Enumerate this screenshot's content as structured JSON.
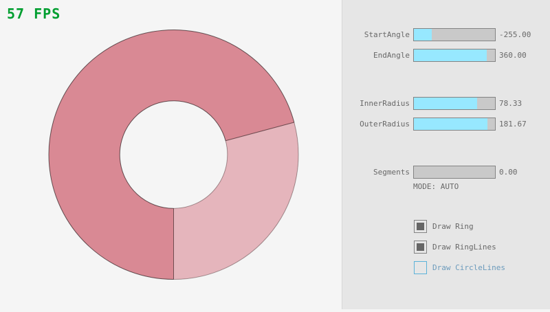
{
  "window": {
    "fps_label": "57 FPS"
  },
  "colors": {
    "canvas_bg": "#f5f5f5",
    "panel_bg": "#e6e6e6",
    "fps_green": "#009e30",
    "text_gray": "#686868",
    "slider_border": "#838383",
    "slider_track": "#c9c9c9",
    "slider_fill": "#97e8ff",
    "checkbox_check": "#666666",
    "focus_border": "#5bb2d9",
    "focus_text": "#6c9bbc",
    "ring_dark": "#d98994",
    "ring_light": "#e5b5bc"
  },
  "ring": {
    "start_angle": -255.0,
    "end_angle": 360.0,
    "inner_radius": 78.33,
    "outer_radius": 181.67,
    "segments": 0,
    "dark_color": "#d98994",
    "light_color": "#e5b5bc"
  },
  "panel": {
    "sliders": [
      {
        "label": "StartAngle",
        "value": "-255.00",
        "fill_pct": 21.7
      },
      {
        "label": "EndAngle",
        "value": "360.00",
        "fill_pct": 90.0
      },
      {
        "label": "InnerRadius",
        "value": "78.33",
        "fill_pct": 78.3
      },
      {
        "label": "OuterRadius",
        "value": "181.67",
        "fill_pct": 90.8
      },
      {
        "label": "Segments",
        "value": "0.00",
        "fill_pct": 0
      }
    ],
    "mode_label": "MODE: AUTO",
    "checkboxes": [
      {
        "label": "Draw Ring",
        "checked": true,
        "focused": false
      },
      {
        "label": "Draw RingLines",
        "checked": true,
        "focused": false
      },
      {
        "label": "Draw CircleLines",
        "checked": false,
        "focused": true
      }
    ]
  }
}
